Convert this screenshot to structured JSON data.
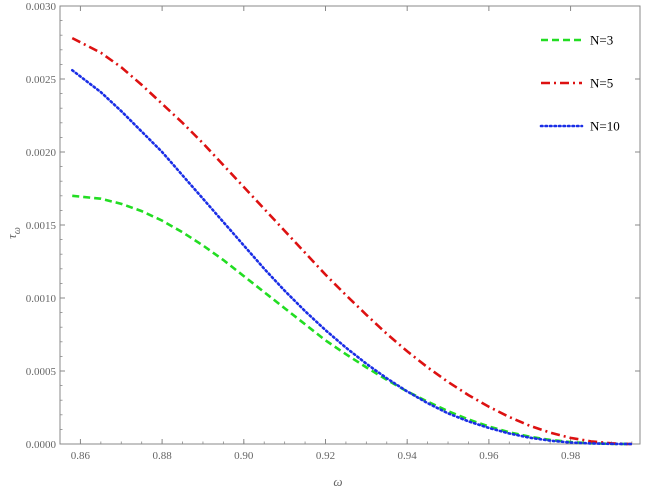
{
  "chart_data": {
    "type": "line",
    "title": "",
    "xlabel": "ω",
    "ylabel": "τ_ω",
    "xlim": [
      0.855,
      0.997
    ],
    "ylim": [
      0,
      0.003
    ],
    "x_ticks": [
      "0.86",
      "0.88",
      "0.90",
      "0.92",
      "0.94",
      "0.96",
      "0.98"
    ],
    "x_tick_values": [
      0.86,
      0.88,
      0.9,
      0.92,
      0.94,
      0.96,
      0.98
    ],
    "y_ticks": [
      "0.0000",
      "0.0005",
      "0.0010",
      "0.0015",
      "0.0020",
      "0.0025",
      "0.0030"
    ],
    "y_tick_values": [
      0,
      0.0005,
      0.001,
      0.0015,
      0.002,
      0.0025,
      0.003
    ],
    "grid": false,
    "legend_position": "top-right",
    "series": [
      {
        "name": "N=3",
        "color": "#22dd22",
        "dash": "dashed",
        "x": [
          0.858,
          0.865,
          0.87,
          0.875,
          0.88,
          0.885,
          0.89,
          0.895,
          0.9,
          0.905,
          0.91,
          0.915,
          0.92,
          0.925,
          0.93,
          0.935,
          0.94,
          0.945,
          0.95,
          0.955,
          0.96,
          0.965,
          0.97,
          0.975,
          0.98,
          0.985,
          0.99,
          0.993,
          0.995
        ],
        "y": [
          0.0017,
          0.00168,
          0.001645,
          0.001595,
          0.00153,
          0.00145,
          0.00136,
          0.00126,
          0.00115,
          0.00104,
          0.00093,
          0.00082,
          0.00071,
          0.000615,
          0.000525,
          0.00044,
          0.00036,
          0.00029,
          0.000225,
          0.000168,
          0.00012,
          8e-05,
          5e-05,
          2.8e-05,
          1.3e-05,
          5e-06,
          1e-06,
          2e-07,
          0
        ]
      },
      {
        "name": "N=5",
        "color": "#dd1111",
        "dash": "dashdot",
        "x": [
          0.858,
          0.865,
          0.87,
          0.875,
          0.88,
          0.885,
          0.89,
          0.895,
          0.9,
          0.905,
          0.91,
          0.915,
          0.92,
          0.925,
          0.93,
          0.935,
          0.94,
          0.945,
          0.95,
          0.955,
          0.96,
          0.965,
          0.97,
          0.975,
          0.98,
          0.985,
          0.99,
          0.993,
          0.995
        ],
        "y": [
          0.00278,
          0.00268,
          0.00258,
          0.00246,
          0.00233,
          0.0022,
          0.00206,
          0.00191,
          0.00176,
          0.00161,
          0.00146,
          0.00131,
          0.00116,
          0.00102,
          0.000885,
          0.000755,
          0.000635,
          0.000525,
          0.000425,
          0.000335,
          0.000255,
          0.000185,
          0.000125,
          7.8e-05,
          4.2e-05,
          1.8e-05,
          5e-06,
          1e-06,
          0
        ]
      },
      {
        "name": "N=10",
        "color": "#1a2ee6",
        "dash": "dotted",
        "x": [
          0.858,
          0.865,
          0.87,
          0.875,
          0.88,
          0.885,
          0.89,
          0.895,
          0.9,
          0.905,
          0.91,
          0.915,
          0.92,
          0.925,
          0.93,
          0.935,
          0.94,
          0.945,
          0.95,
          0.955,
          0.96,
          0.965,
          0.97,
          0.975,
          0.98,
          0.985,
          0.99,
          0.993,
          0.995
        ],
        "y": [
          0.00256,
          0.00241,
          0.00228,
          0.00214,
          0.002,
          0.00184,
          0.00168,
          0.00152,
          0.00136,
          0.0012,
          0.00105,
          0.00091,
          0.00078,
          0.00066,
          0.00055,
          0.00045,
          0.00036,
          0.00028,
          0.00021,
          0.000155,
          0.00011,
          7.2e-05,
          4.3e-05,
          2.3e-05,
          1e-05,
          4e-06,
          1e-06,
          2e-07,
          0
        ]
      }
    ]
  }
}
